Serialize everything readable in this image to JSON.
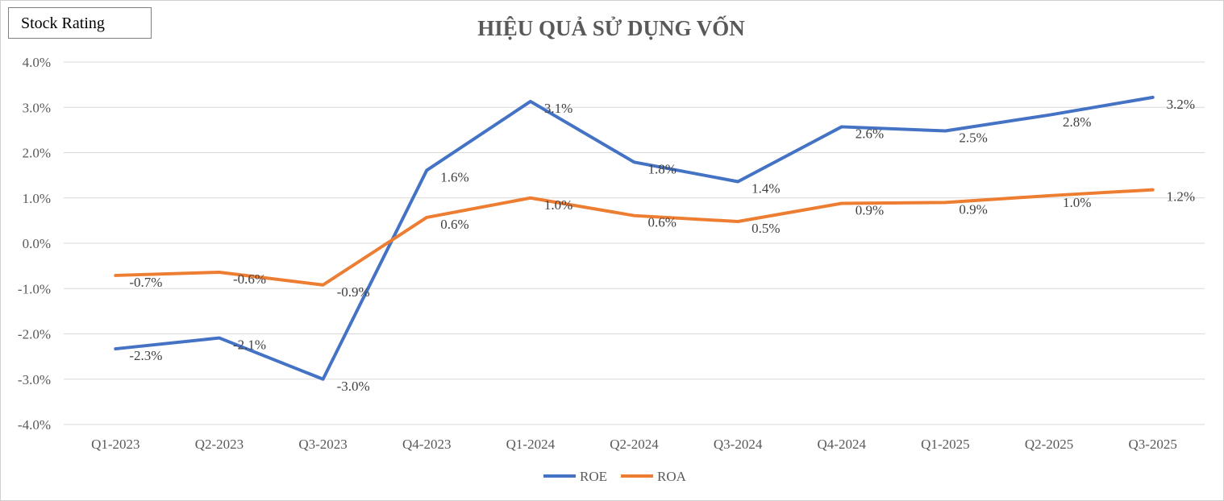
{
  "badge": {
    "label": "Stock Rating"
  },
  "chart_data": {
    "type": "line",
    "title": "HIỆU QUẢ SỬ DỤNG VỐN",
    "xlabel": "",
    "ylabel": "",
    "categories": [
      "Q1-2023",
      "Q2-2023",
      "Q3-2023",
      "Q4-2023",
      "Q1-2024",
      "Q2-2024",
      "Q3-2024",
      "Q4-2024",
      "Q1-2025",
      "Q2-2025",
      "Q3-2025"
    ],
    "ylim": [
      -4.0,
      4.0
    ],
    "yticks": [
      4.0,
      3.0,
      2.0,
      1.0,
      0.0,
      -1.0,
      -2.0,
      -3.0,
      -4.0
    ],
    "ytick_labels": [
      "4.0%",
      "3.0%",
      "2.0%",
      "1.0%",
      "0.0%",
      "-1.0%",
      "-2.0%",
      "-3.0%",
      "-4.0%"
    ],
    "grid": true,
    "legend_position": "bottom",
    "series": [
      {
        "name": "ROE",
        "color": "#4472C4",
        "values": [
          -2.33,
          -2.09,
          -3.0,
          1.61,
          3.13,
          1.79,
          1.36,
          2.57,
          2.48,
          2.83,
          3.22
        ],
        "labels": [
          "-2.3%",
          "-2.1%",
          "-3.0%",
          "1.6%",
          "3.1%",
          "1.8%",
          "1.4%",
          "2.6%",
          "2.5%",
          "2.8%",
          "3.2%"
        ]
      },
      {
        "name": "ROA",
        "color": "#ED7D31",
        "values": [
          -0.71,
          -0.64,
          -0.92,
          0.57,
          1.0,
          0.61,
          0.48,
          0.88,
          0.9,
          1.05,
          1.18
        ],
        "labels": [
          "-0.7%",
          "-0.6%",
          "-0.9%",
          "0.6%",
          "1.0%",
          "0.6%",
          "0.5%",
          "0.9%",
          "0.9%",
          "1.0%",
          "1.2%"
        ]
      }
    ]
  }
}
